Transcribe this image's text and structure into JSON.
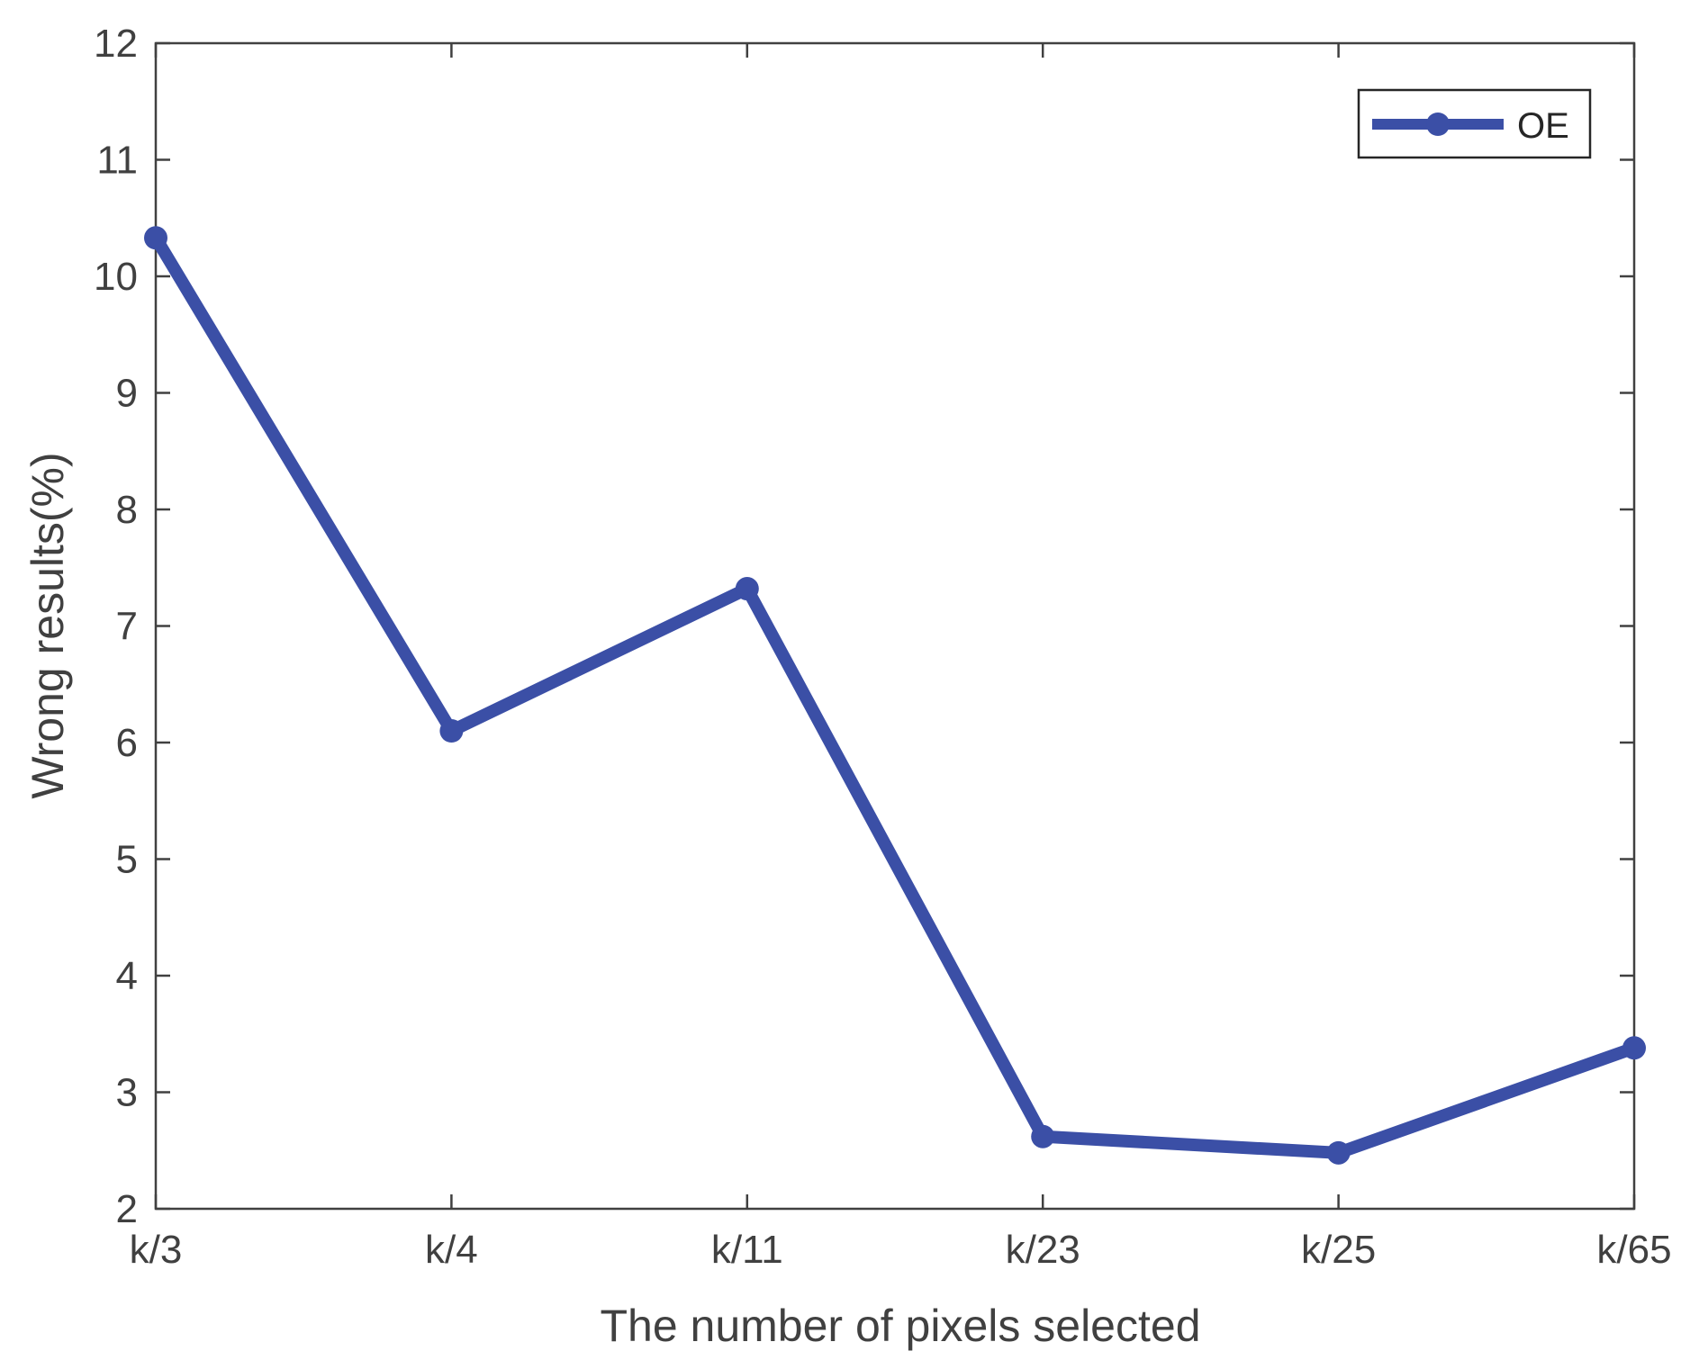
{
  "chart_data": {
    "type": "line",
    "xlabel": "The number of pixels selected",
    "ylabel": "Wrong results(%)",
    "categories": [
      "k/3",
      "k/4",
      "k/11",
      "k/23",
      "k/25",
      "k/65"
    ],
    "series": [
      {
        "name": "OE",
        "values": [
          10.33,
          6.1,
          7.32,
          2.62,
          2.48,
          3.38
        ]
      }
    ],
    "ylim": [
      2,
      12
    ],
    "yticks": [
      2,
      3,
      4,
      5,
      6,
      7,
      8,
      9,
      10,
      11,
      12
    ],
    "grid": false,
    "legend_position": "top-right",
    "colors": {
      "series": "#3b4fa6",
      "axis": "#404040"
    }
  }
}
